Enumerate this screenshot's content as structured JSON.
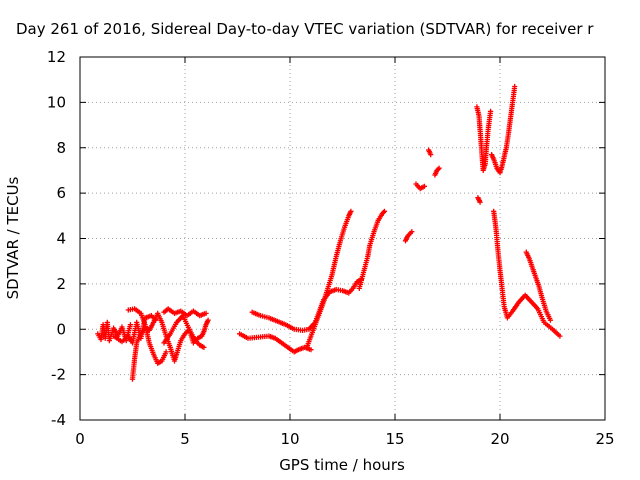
{
  "chart_data": {
    "type": "scatter",
    "title": "Day 261 of 2016, Sidereal Day-to-day VTEC variation (SDTVAR) for receiver r",
    "xlabel": "GPS time / hours",
    "ylabel": "SDTVAR / TECUs",
    "xlim": [
      0,
      25
    ],
    "ylim": [
      -4,
      12
    ],
    "xticks": [
      0,
      5,
      10,
      15,
      20,
      25
    ],
    "yticks": [
      -4,
      -2,
      0,
      2,
      4,
      6,
      8,
      10,
      12
    ],
    "grid": true,
    "marker": "+",
    "series": [
      {
        "name": "SDTVAR",
        "color": "#ff0000",
        "segments": [
          [
            [
              0.85,
              -0.2
            ],
            [
              1.0,
              -0.45
            ],
            [
              1.1,
              0.2
            ],
            [
              1.2,
              -0.4
            ],
            [
              1.3,
              0.3
            ],
            [
              1.4,
              -0.5
            ],
            [
              1.6,
              0.05
            ],
            [
              1.8,
              -0.3
            ],
            [
              2.0,
              0.1
            ],
            [
              2.2,
              -0.5
            ],
            [
              2.4,
              0.2
            ]
          ],
          [
            [
              1.6,
              -0.3
            ],
            [
              2.0,
              -0.55
            ],
            [
              2.3,
              -0.3
            ],
            [
              2.5,
              -0.6
            ],
            [
              2.7,
              0.3
            ],
            [
              2.9,
              -0.4
            ],
            [
              3.1,
              0.5
            ],
            [
              3.4,
              0.6
            ],
            [
              3.6,
              0.4
            ]
          ],
          [
            [
              2.3,
              0.85
            ],
            [
              2.6,
              0.9
            ],
            [
              2.9,
              0.7
            ],
            [
              3.1,
              0.2
            ],
            [
              3.3,
              -0.6
            ],
            [
              3.5,
              -1.1
            ],
            [
              3.7,
              -1.5
            ],
            [
              3.9,
              -1.4
            ],
            [
              4.1,
              -1.0
            ]
          ],
          [
            [
              2.5,
              -2.2
            ],
            [
              2.6,
              -1.3
            ],
            [
              2.7,
              -0.6
            ],
            [
              2.9,
              -0.2
            ],
            [
              3.1,
              0.05
            ],
            [
              3.3,
              -0.05
            ],
            [
              3.5,
              0.3
            ],
            [
              3.7,
              0.7
            ],
            [
              3.9,
              0.3
            ],
            [
              4.1,
              -0.3
            ],
            [
              4.3,
              -0.8
            ],
            [
              4.5,
              -1.4
            ],
            [
              4.6,
              -1.1
            ],
            [
              4.8,
              -0.5
            ],
            [
              5.0,
              -0.2
            ],
            [
              5.2,
              0.0
            ],
            [
              5.4,
              -0.6
            ],
            [
              5.6,
              -0.4
            ],
            [
              5.8,
              -0.3
            ],
            [
              5.9,
              -0.1
            ],
            [
              6.0,
              0.2
            ],
            [
              6.1,
              0.4
            ]
          ],
          [
            [
              4.0,
              -0.6
            ],
            [
              4.3,
              -0.2
            ],
            [
              4.6,
              0.3
            ],
            [
              4.9,
              0.6
            ],
            [
              5.2,
              0.0
            ],
            [
              5.5,
              -0.5
            ],
            [
              5.7,
              -0.7
            ],
            [
              5.9,
              -0.8
            ]
          ],
          [
            [
              4.0,
              0.75
            ],
            [
              4.2,
              0.9
            ],
            [
              4.5,
              0.7
            ],
            [
              4.8,
              0.8
            ],
            [
              5.1,
              0.6
            ],
            [
              5.4,
              0.8
            ],
            [
              5.7,
              0.6
            ],
            [
              6.0,
              0.7
            ]
          ],
          [
            [
              7.6,
              -0.2
            ],
            [
              8.0,
              -0.4
            ],
            [
              8.5,
              -0.35
            ],
            [
              9.0,
              -0.3
            ],
            [
              9.3,
              -0.4
            ],
            [
              9.6,
              -0.6
            ],
            [
              9.9,
              -0.8
            ],
            [
              10.2,
              -1.0
            ],
            [
              10.4,
              -0.9
            ],
            [
              10.7,
              -0.8
            ],
            [
              11.0,
              -0.9
            ]
          ],
          [
            [
              8.2,
              0.75
            ],
            [
              8.6,
              0.6
            ],
            [
              9.0,
              0.5
            ],
            [
              9.4,
              0.35
            ],
            [
              9.8,
              0.2
            ],
            [
              10.2,
              0.0
            ],
            [
              10.6,
              -0.05
            ],
            [
              10.9,
              0.0
            ],
            [
              11.2,
              0.3
            ],
            [
              11.4,
              0.8
            ],
            [
              11.6,
              1.3
            ],
            [
              11.9,
              1.65
            ],
            [
              12.2,
              1.75
            ],
            [
              12.5,
              1.7
            ],
            [
              12.8,
              1.6
            ],
            [
              13.0,
              1.8
            ],
            [
              13.2,
              2.1
            ],
            [
              13.4,
              2.2
            ]
          ],
          [
            [
              10.8,
              -0.8
            ],
            [
              11.0,
              -0.3
            ],
            [
              11.2,
              0.2
            ],
            [
              11.4,
              0.7
            ],
            [
              11.6,
              1.2
            ],
            [
              11.8,
              1.8
            ],
            [
              12.0,
              2.4
            ],
            [
              12.2,
              3.2
            ],
            [
              12.4,
              3.9
            ],
            [
              12.6,
              4.5
            ],
            [
              12.8,
              5.0
            ],
            [
              12.9,
              5.2
            ]
          ],
          [
            [
              13.3,
              1.8
            ],
            [
              13.5,
              2.5
            ],
            [
              13.7,
              3.2
            ],
            [
              13.8,
              3.7
            ],
            [
              14.0,
              4.3
            ],
            [
              14.2,
              4.8
            ],
            [
              14.4,
              5.1
            ],
            [
              14.5,
              5.2
            ]
          ],
          [
            [
              15.5,
              3.9
            ],
            [
              15.6,
              4.1
            ],
            [
              15.8,
              4.3
            ]
          ],
          [
            [
              16.0,
              6.4
            ],
            [
              16.2,
              6.2
            ],
            [
              16.4,
              6.3
            ]
          ],
          [
            [
              16.6,
              7.9
            ],
            [
              16.7,
              7.7
            ]
          ],
          [
            [
              16.9,
              6.8
            ],
            [
              17.0,
              7.0
            ],
            [
              17.1,
              7.1
            ]
          ],
          [
            [
              18.95,
              5.8
            ],
            [
              19.05,
              5.6
            ]
          ],
          [
            [
              18.9,
              9.8
            ],
            [
              19.0,
              9.4
            ],
            [
              19.05,
              8.8
            ],
            [
              19.1,
              8.2
            ],
            [
              19.15,
              7.6
            ],
            [
              19.2,
              7.0
            ],
            [
              19.3,
              7.3
            ],
            [
              19.35,
              8.0
            ],
            [
              19.45,
              8.9
            ],
            [
              19.55,
              9.6
            ]
          ],
          [
            [
              19.6,
              7.7
            ],
            [
              19.7,
              7.5
            ],
            [
              19.85,
              7.1
            ],
            [
              20.0,
              6.9
            ],
            [
              20.1,
              7.2
            ],
            [
              20.2,
              7.6
            ],
            [
              20.3,
              8.0
            ],
            [
              20.4,
              8.6
            ],
            [
              20.5,
              9.3
            ],
            [
              20.6,
              10.0
            ],
            [
              20.7,
              10.7
            ]
          ],
          [
            [
              19.7,
              5.2
            ],
            [
              19.8,
              4.5
            ],
            [
              19.9,
              3.5
            ],
            [
              20.0,
              2.6
            ],
            [
              20.1,
              1.8
            ],
            [
              20.2,
              1.0
            ],
            [
              20.35,
              0.5
            ],
            [
              20.6,
              0.8
            ],
            [
              20.9,
              1.2
            ],
            [
              21.2,
              1.5
            ],
            [
              21.5,
              1.2
            ],
            [
              21.8,
              0.9
            ],
            [
              22.1,
              0.3
            ],
            [
              22.5,
              0.0
            ],
            [
              22.85,
              -0.3
            ]
          ],
          [
            [
              21.25,
              3.4
            ],
            [
              21.4,
              3.1
            ],
            [
              21.55,
              2.7
            ],
            [
              21.7,
              2.3
            ],
            [
              21.85,
              1.9
            ],
            [
              22.0,
              1.4
            ],
            [
              22.2,
              0.8
            ],
            [
              22.4,
              0.4
            ]
          ]
        ]
      }
    ]
  }
}
